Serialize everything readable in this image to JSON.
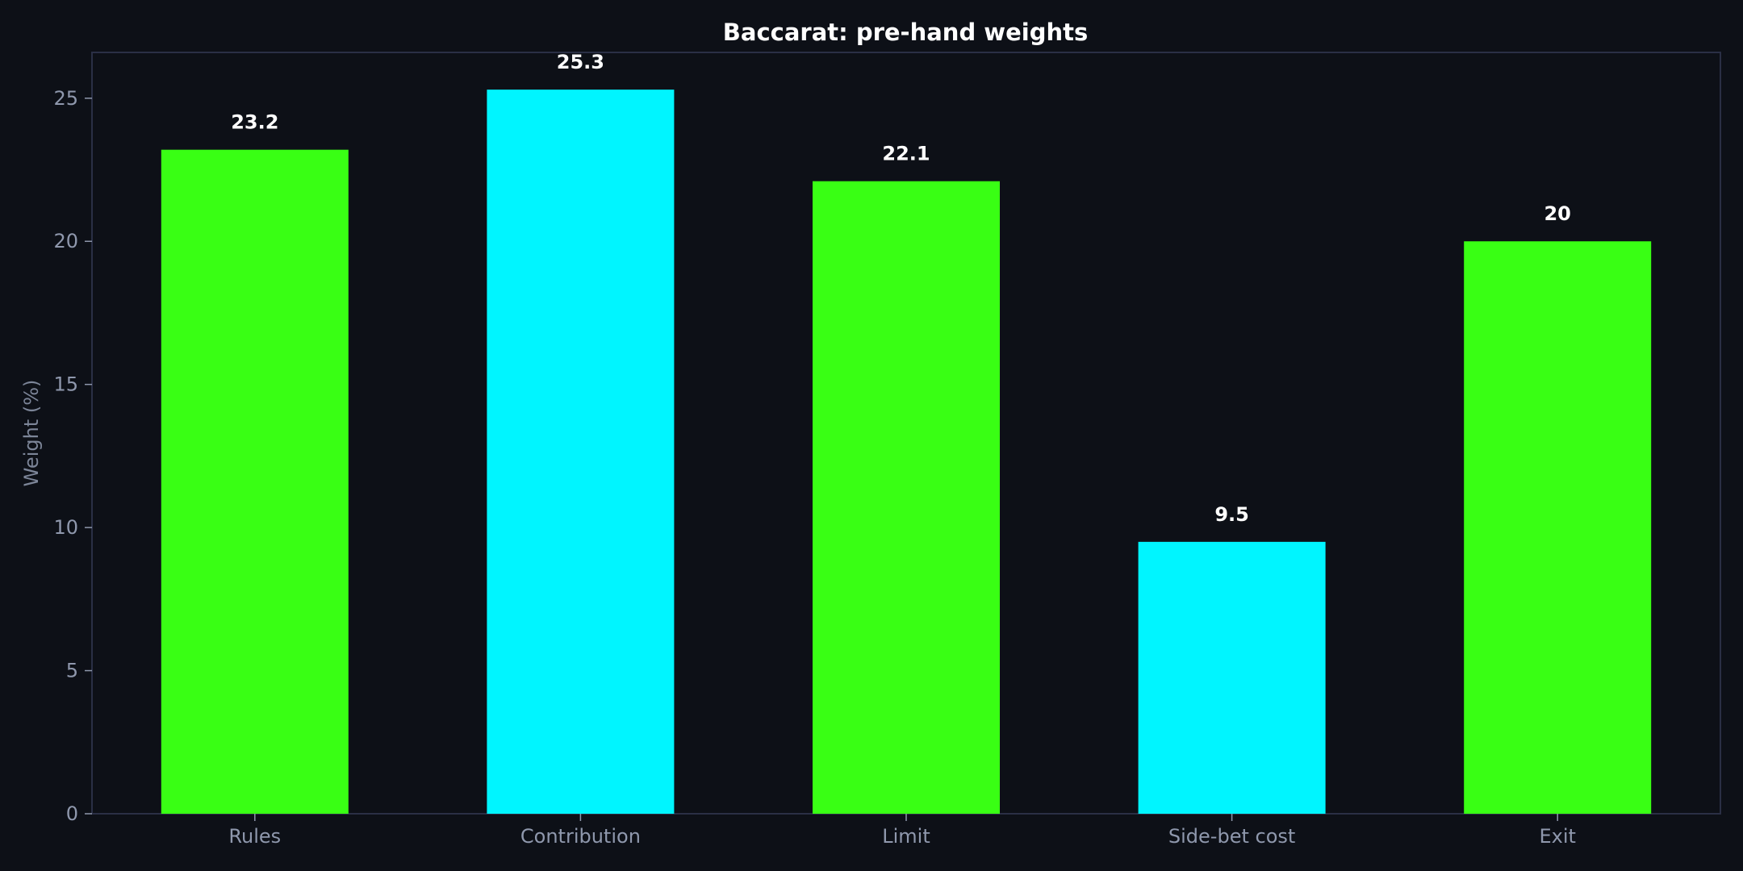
{
  "chart_data": {
    "type": "bar",
    "title": "Baccarat: pre-hand weights",
    "xlabel": "",
    "ylabel": "Weight (%)",
    "categories": [
      "Rules",
      "Contribution",
      "Limit",
      "Side-bet cost",
      "Exit"
    ],
    "values": [
      23.2,
      25.3,
      22.1,
      9.5,
      20
    ],
    "value_labels": [
      "23.2",
      "25.3",
      "22.1",
      "9.5",
      "20"
    ],
    "bar_colors": [
      "#39ff14",
      "#00f5ff",
      "#39ff14",
      "#00f5ff",
      "#39ff14"
    ],
    "ylim": [
      0,
      26.6
    ],
    "yticks": [
      0,
      5,
      10,
      15,
      20,
      25
    ],
    "grid": false,
    "legend": "none"
  },
  "colors": {
    "background": "#0d1017",
    "frame": "#2a2f45",
    "tick": "#8f98ad"
  }
}
